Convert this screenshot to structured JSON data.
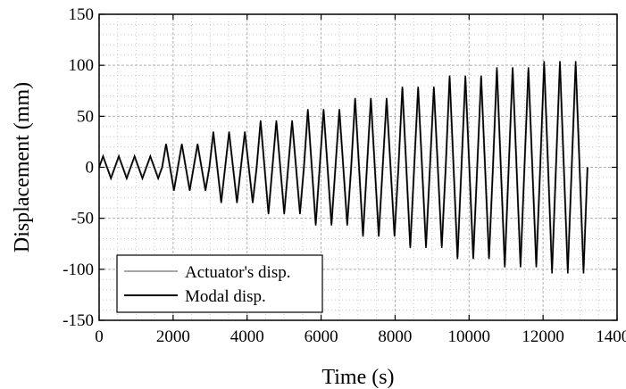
{
  "chart_data": {
    "type": "line",
    "title": "",
    "xlabel": "Time (s)",
    "ylabel": "Displacement (mm)",
    "xlim": [
      0,
      14000
    ],
    "ylim": [
      -150,
      150
    ],
    "xticks": [
      0,
      2000,
      4000,
      6000,
      8000,
      10000,
      12000,
      14000
    ],
    "yticks": [
      -150,
      -100,
      -50,
      0,
      50,
      100,
      150
    ],
    "grid": true,
    "minor_grid": true,
    "legend_position": "bottom-left",
    "series": [
      {
        "name": "Actuator's disp.",
        "color": "#a6a6a6",
        "cycle_peaks": [
          10,
          10,
          10,
          10,
          22,
          22,
          22,
          33,
          33,
          33,
          44,
          44,
          44,
          55,
          55,
          55,
          66,
          66,
          66,
          77,
          77,
          77,
          88,
          88,
          88,
          95,
          95,
          95,
          100,
          100,
          100
        ],
        "end_time": 13200
      },
      {
        "name": "Modal disp.",
        "color": "#000000",
        "cycle_peaks": [
          11,
          11,
          11,
          11,
          23,
          23,
          23,
          35,
          35,
          35,
          46,
          46,
          46,
          57,
          57,
          57,
          68,
          68,
          68,
          79,
          79,
          79,
          90,
          90,
          90,
          98,
          98,
          98,
          104,
          104,
          104
        ],
        "end_time": 13200
      }
    ]
  }
}
